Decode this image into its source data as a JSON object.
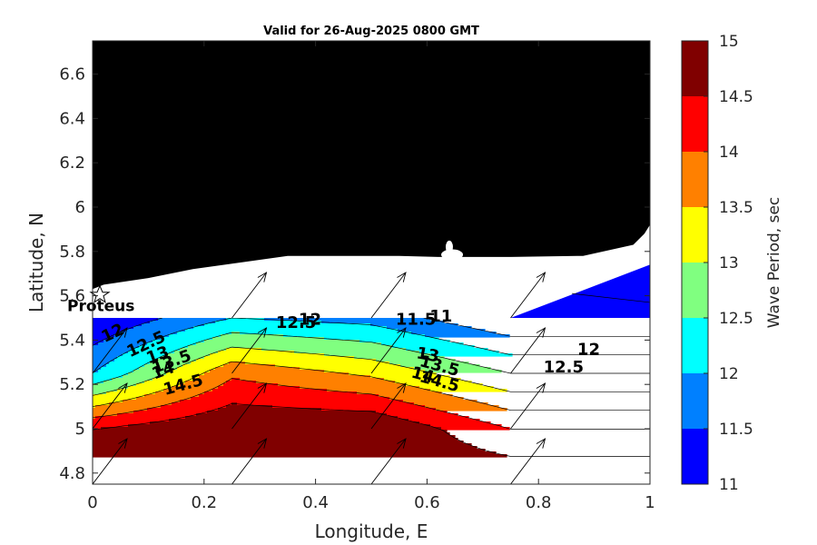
{
  "chart_data": {
    "type": "heatmap",
    "title": "Valid for 26-Aug-2025 0800 GMT",
    "xlabel": "Longitude, E",
    "ylabel": "Latitude, N",
    "xlim": [
      0,
      1
    ],
    "ylim": [
      4.75,
      6.75
    ],
    "x_ticks": [
      "0",
      "0.2",
      "0.4",
      "0.6",
      "0.8",
      "1"
    ],
    "y_ticks": [
      "4.8",
      "5",
      "5.2",
      "5.4",
      "5.6",
      "5.8",
      "6",
      "6.2",
      "6.4",
      "6.6"
    ],
    "colorbar": {
      "label": "Wave Period, sec",
      "min": 11,
      "max": 15,
      "ticks": [
        "11",
        "11.5",
        "12",
        "12.5",
        "13",
        "13.5",
        "14",
        "14.5",
        "15"
      ],
      "colors": [
        "#0000ff",
        "#0080ff",
        "#00ffff",
        "#80ff80",
        "#ffff00",
        "#ff8000",
        "#ff0000",
        "#800000"
      ]
    },
    "grid_x": [
      0,
      0.25,
      0.5,
      0.75,
      1
    ],
    "grid_y": [
      4.75,
      5.0,
      5.25,
      5.5
    ],
    "wave_period": [
      [
        15.0,
        15.0,
        15.0,
        15.0,
        15.0
      ],
      [
        14.5,
        15.0,
        15.0,
        14.0,
        14.0
      ],
      [
        12.0,
        13.9,
        13.4,
        12.5,
        12.5
      ],
      [
        11.0,
        12.0,
        11.8,
        11.0,
        11.0
      ]
    ],
    "contour_labels": [
      "11",
      "11.5",
      "12",
      "12.5",
      "13",
      "13.5",
      "14",
      "14.5"
    ],
    "land_color": "#000000",
    "arrow_direction": "southwest to northeast",
    "arrow_points": [
      {
        "lon": 0.0,
        "lat": 4.75
      },
      {
        "lon": 0.25,
        "lat": 4.75
      },
      {
        "lon": 0.5,
        "lat": 4.75
      },
      {
        "lon": 0.75,
        "lat": 4.75
      },
      {
        "lon": 0.0,
        "lat": 5.0
      },
      {
        "lon": 0.25,
        "lat": 5.0
      },
      {
        "lon": 0.5,
        "lat": 5.0
      },
      {
        "lon": 0.75,
        "lat": 5.0
      },
      {
        "lon": 0.0,
        "lat": 5.25
      },
      {
        "lon": 0.25,
        "lat": 5.25
      },
      {
        "lon": 0.5,
        "lat": 5.25
      },
      {
        "lon": 0.75,
        "lat": 5.25
      },
      {
        "lon": 0.25,
        "lat": 5.5
      },
      {
        "lon": 0.5,
        "lat": 5.5
      },
      {
        "lon": 0.75,
        "lat": 5.5
      }
    ],
    "annotations": [
      {
        "text": "Proteus",
        "lon": 0.0,
        "lat": 5.62
      }
    ]
  }
}
